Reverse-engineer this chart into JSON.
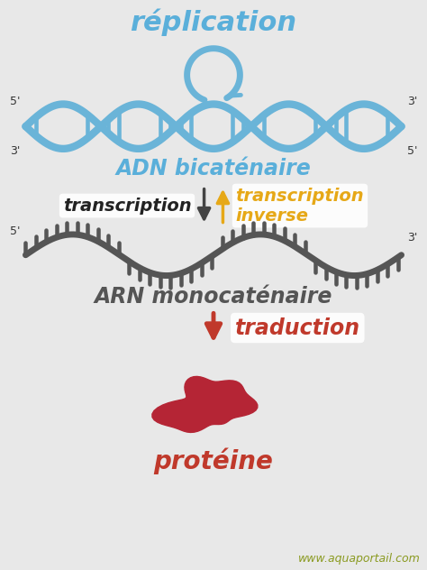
{
  "bg_color": "#e8e8e8",
  "title_text": "réplication",
  "title_color": "#5aafda",
  "title_fontsize": 22,
  "adn_label": "ADN bicaténaire",
  "adn_label_color": "#5aafda",
  "adn_label_fontsize": 17,
  "arn_label": "ARN monocaténaire",
  "arn_label_color": "#555555",
  "arn_label_fontsize": 17,
  "protein_label": "protéine",
  "protein_label_color": "#c0392b",
  "protein_label_fontsize": 20,
  "transcription_label": "transcription",
  "transcription_color": "#222222",
  "transcription_fontsize": 14,
  "transcription_inverse_label": "transcription\ninverse",
  "transcription_inverse_color": "#e6a817",
  "transcription_inverse_fontsize": 14,
  "traduction_label": "traduction",
  "traduction_color": "#c0392b",
  "traduction_fontsize": 17,
  "dna_color": "#6ab4d8",
  "dna_color_dark": "#4a8fb5",
  "rna_color": "#555555",
  "arrow_down_dark": "#444444",
  "arrow_up_orange": "#e6a817",
  "arrow_red": "#c0392b",
  "watermark": "www.aquaportail.com",
  "watermark_color": "#8a9a20",
  "watermark_fontsize": 9,
  "prime5_3_color": "#333333",
  "prime_fontsize": 9
}
